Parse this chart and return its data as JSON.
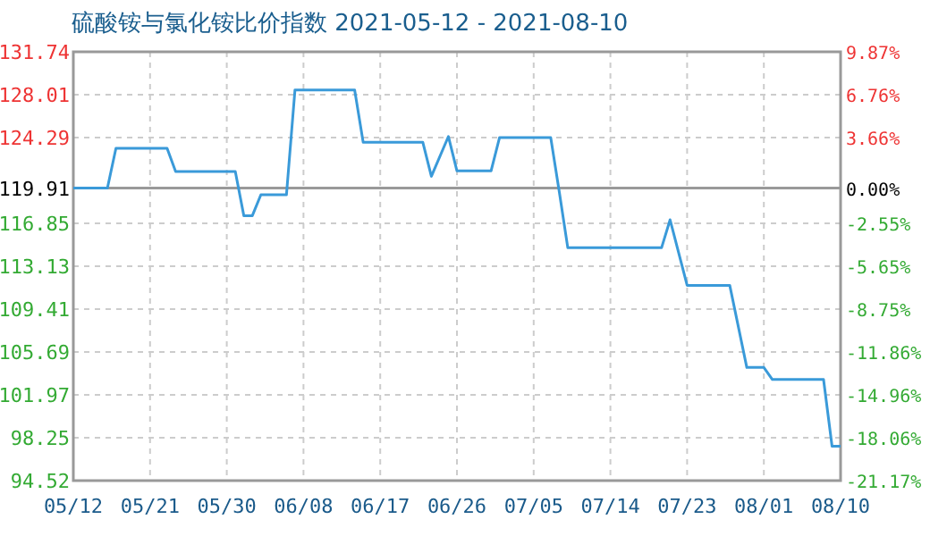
{
  "chart_data": {
    "type": "line",
    "title": "硫酸铵与氯化铵比价指数 2021-05-12 - 2021-08-10",
    "x": [
      "2021-05-12",
      "2021-05-16",
      "2021-05-17",
      "2021-05-23",
      "2021-05-24",
      "2021-05-31",
      "2021-06-01",
      "2021-06-02",
      "2021-06-03",
      "2021-06-06",
      "2021-06-07",
      "2021-06-14",
      "2021-06-15",
      "2021-06-22",
      "2021-06-23",
      "2021-06-25",
      "2021-06-26",
      "2021-06-30",
      "2021-07-01",
      "2021-07-07",
      "2021-07-08",
      "2021-07-09",
      "2021-07-20",
      "2021-07-21",
      "2021-07-23",
      "2021-07-28",
      "2021-07-30",
      "2021-08-01",
      "2021-08-02",
      "2021-08-08",
      "2021-08-09",
      "2021-08-10"
    ],
    "series": [
      {
        "color": "#3a9ad9",
        "values": [
          119.91,
          119.91,
          123.37,
          123.37,
          121.35,
          121.35,
          117.52,
          117.52,
          119.33,
          119.33,
          128.43,
          128.43,
          123.88,
          123.88,
          120.93,
          124.39,
          121.4,
          121.4,
          124.3,
          124.3,
          119.6,
          114.73,
          114.73,
          117.16,
          111.47,
          111.47,
          104.34,
          104.34,
          103.3,
          103.3,
          97.51,
          97.51
        ]
      }
    ],
    "xlim": [
      "2021-05-12",
      "2021-08-10"
    ],
    "xticks": [
      {
        "value": "2021-05-12",
        "label": "05/12"
      },
      {
        "value": "2021-05-21",
        "label": "05/21"
      },
      {
        "value": "2021-05-30",
        "label": "05/30"
      },
      {
        "value": "2021-06-08",
        "label": "06/08"
      },
      {
        "value": "2021-06-17",
        "label": "06/17"
      },
      {
        "value": "2021-06-26",
        "label": "06/26"
      },
      {
        "value": "2021-07-05",
        "label": "07/05"
      },
      {
        "value": "2021-07-14",
        "label": "07/14"
      },
      {
        "value": "2021-07-23",
        "label": "07/23"
      },
      {
        "value": "2021-08-01",
        "label": "08/01"
      },
      {
        "value": "2021-08-10",
        "label": "08/10"
      }
    ],
    "ylim": [
      94.52,
      131.74
    ],
    "yticks": [
      94.52,
      98.25,
      101.97,
      105.69,
      109.41,
      113.13,
      116.85,
      119.91,
      124.29,
      128.01,
      131.74
    ],
    "y2lim": [
      -21.17,
      9.87
    ],
    "y2ticks": [
      {
        "value": -21.17,
        "label": "-21.17%"
      },
      {
        "value": -18.06,
        "label": "-18.06%"
      },
      {
        "value": -14.96,
        "label": "-14.96%"
      },
      {
        "value": -11.86,
        "label": "-11.86%"
      },
      {
        "value": -8.75,
        "label": "-8.75%"
      },
      {
        "value": -5.65,
        "label": "-5.65%"
      },
      {
        "value": -2.55,
        "label": "-2.55%"
      },
      {
        "value": 0,
        "label": "0.00%"
      },
      {
        "value": 3.66,
        "label": "3.66%"
      },
      {
        "value": 6.76,
        "label": "6.76%"
      },
      {
        "value": 9.87,
        "label": "9.87%"
      }
    ],
    "ref_lines": [
      {
        "axis": "y",
        "value": 119.91,
        "color": "#999999"
      }
    ],
    "grid": true,
    "marker": "none",
    "line_style": "solid"
  }
}
